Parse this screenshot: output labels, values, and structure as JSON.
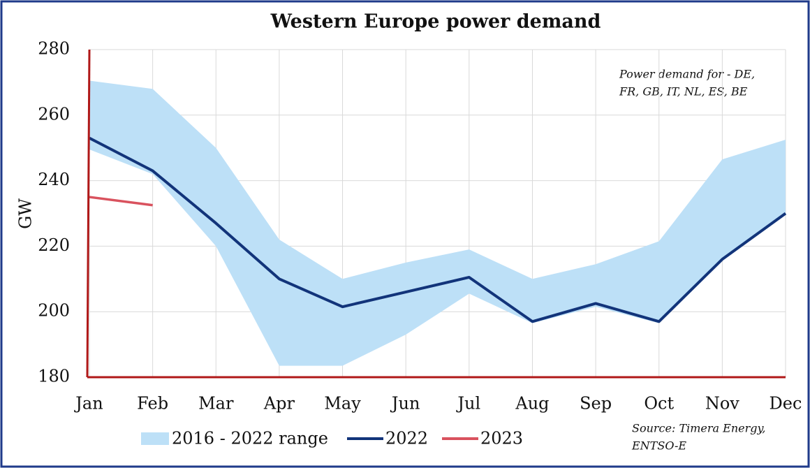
{
  "chart_data": {
    "type": "line",
    "title": "Western Europe power demand",
    "ylabel": "GW",
    "annotation": [
      "Power demand for - DE,",
      "FR, GB, IT, NL, ES, BE"
    ],
    "source": [
      "Source: Timera Energy,",
      "ENTSO-E"
    ],
    "categories": [
      "Jan",
      "Feb",
      "Mar",
      "Apr",
      "May",
      "Jun",
      "Jul",
      "Aug",
      "Sep",
      "Oct",
      "Nov",
      "Dec"
    ],
    "series": [
      {
        "name": "2016 - 2022 range",
        "color": "#bde0f7",
        "high": [
          270.5,
          268,
          250,
          222,
          210,
          215,
          219,
          210,
          214.5,
          221.5,
          246.5,
          252.5
        ],
        "low": [
          249.5,
          242,
          220,
          183.5,
          183.5,
          193,
          205.5,
          196.5,
          201.5,
          196.5,
          215.5,
          229.5
        ]
      },
      {
        "name": "2022",
        "color": "#12347a",
        "values": [
          253,
          243,
          227,
          210,
          201.5,
          206,
          210.5,
          197,
          202.5,
          197,
          216,
          230
        ]
      },
      {
        "name": "2023",
        "color": "#d9525e",
        "values": [
          235,
          232.5,
          null,
          null,
          null,
          null,
          null,
          null,
          null,
          null,
          null,
          null
        ]
      }
    ],
    "ylim": [
      180,
      280
    ],
    "yticks": [
      180,
      200,
      220,
      240,
      260,
      280
    ],
    "grid": true,
    "axis_color": "#b01818"
  }
}
